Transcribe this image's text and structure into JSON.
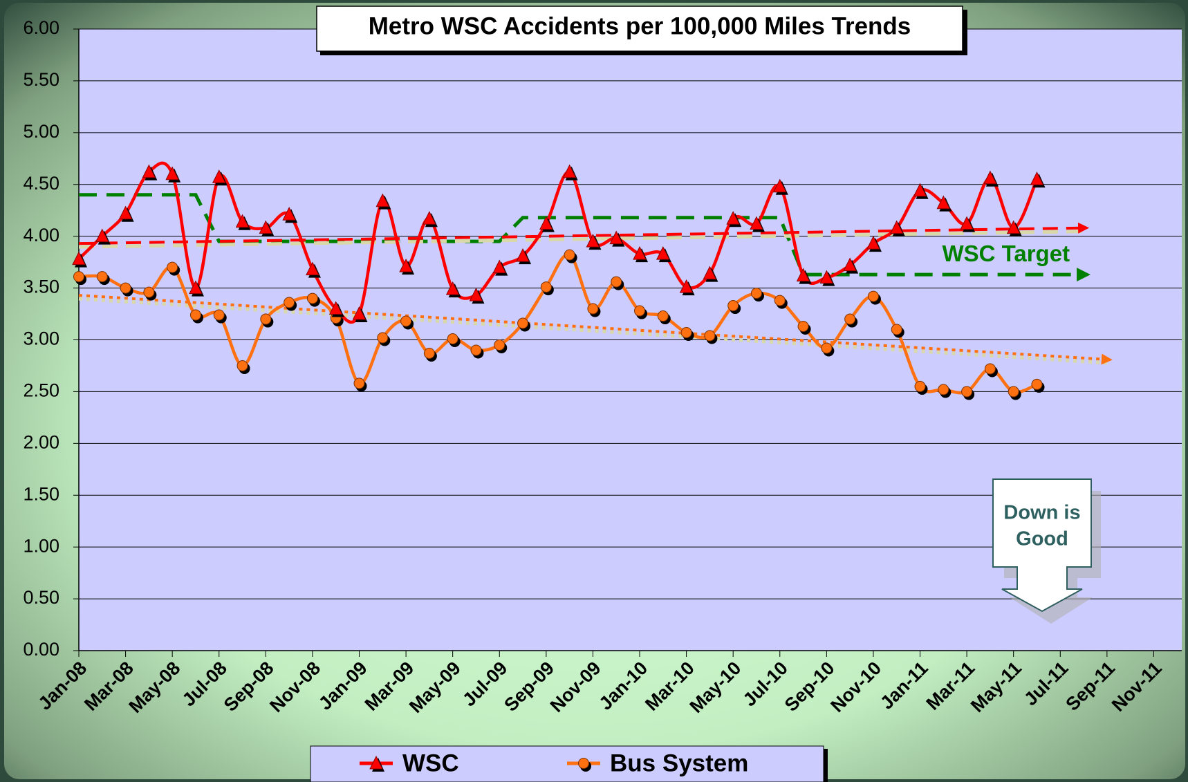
{
  "chart_data": {
    "type": "line",
    "title": "Metro WSC Accidents per 100,000 Miles Trends",
    "categories": [
      "Jan-08",
      null,
      "Mar-08",
      null,
      "May-08",
      null,
      "Jul-08",
      null,
      "Sep-08",
      null,
      "Nov-08",
      null,
      "Jan-09",
      null,
      "Mar-09",
      null,
      "May-09",
      null,
      "Jul-09",
      null,
      "Sep-09",
      null,
      "Nov-09",
      null,
      "Jan-10",
      null,
      "Mar-10",
      null,
      "May-10",
      null,
      "Jul-10",
      null,
      "Sep-10",
      null,
      "Nov-10",
      null,
      "Jan-11",
      null,
      "Mar-11",
      null,
      "May-11",
      null,
      "Jul-11",
      null,
      "Sep-11",
      null,
      "Nov-11",
      null
    ],
    "series": [
      {
        "name": "WSC",
        "color": "#ff0000",
        "marker": "triangle",
        "values": [
          3.78,
          4.0,
          4.22,
          4.62,
          4.6,
          3.5,
          4.57,
          4.14,
          4.08,
          4.21,
          3.68,
          3.3,
          3.25,
          4.34,
          3.71,
          4.17,
          3.49,
          3.43,
          3.7,
          3.81,
          4.12,
          4.62,
          3.95,
          3.98,
          3.83,
          3.83,
          3.51,
          3.64,
          4.17,
          4.12,
          4.48,
          3.62,
          3.6,
          3.72,
          3.93,
          4.08,
          4.44,
          4.32,
          4.12,
          4.56,
          4.08,
          4.55,
          null,
          null,
          null,
          null,
          null,
          null
        ]
      },
      {
        "name": "Bus System",
        "color": "#ff7010",
        "marker": "circle",
        "values": [
          3.61,
          3.61,
          3.5,
          3.46,
          3.7,
          3.24,
          3.24,
          2.75,
          3.2,
          3.36,
          3.4,
          3.21,
          2.58,
          3.02,
          3.18,
          2.87,
          3.01,
          2.9,
          2.95,
          3.16,
          3.51,
          3.82,
          3.3,
          3.56,
          3.28,
          3.23,
          3.07,
          3.04,
          3.33,
          3.45,
          3.38,
          3.13,
          2.92,
          3.2,
          3.42,
          3.1,
          2.55,
          2.52,
          2.5,
          2.72,
          2.5,
          2.57,
          null,
          null,
          null,
          null,
          null,
          null
        ]
      }
    ],
    "target": {
      "color": "#008000",
      "values": [
        4.4,
        4.4,
        4.4,
        4.4,
        4.4,
        4.4,
        3.95,
        3.95,
        3.95,
        3.95,
        3.95,
        3.95,
        3.95,
        3.95,
        3.95,
        3.95,
        3.95,
        3.95,
        3.95,
        4.18,
        4.18,
        4.18,
        4.18,
        4.18,
        4.18,
        4.18,
        4.18,
        4.18,
        4.18,
        4.18,
        4.18,
        3.63,
        3.63,
        3.63,
        3.63,
        3.63,
        3.63,
        3.63,
        3.63,
        3.63,
        3.63,
        3.63,
        3.63,
        3.63,
        null,
        null,
        null,
        null
      ]
    },
    "trend_lines": [
      {
        "color": "#ff0000",
        "style": "dashed",
        "start": 0,
        "end": 43,
        "values": [
          3.93,
          4.08
        ]
      },
      {
        "color": "#ff7010",
        "style": "dotted",
        "start": 0,
        "end": 44,
        "values": [
          3.43,
          2.81
        ]
      }
    ],
    "annotations": {
      "target_label": "WSC Target",
      "note": [
        "Down is",
        "Good"
      ]
    },
    "ylim": [
      0,
      6
    ],
    "yticks": [
      {
        "value": 0,
        "label": "0.00"
      },
      {
        "value": 0.5,
        "label": "0.50"
      },
      {
        "value": 1,
        "label": "1.00"
      },
      {
        "value": 1.5,
        "label": "1.50"
      },
      {
        "value": 2,
        "label": "2.00"
      },
      {
        "value": 2.5,
        "label": "2.50"
      },
      {
        "value": 3,
        "label": "3.00"
      },
      {
        "value": 3.5,
        "label": "3.50"
      },
      {
        "value": 4,
        "label": "4.00"
      },
      {
        "value": 4.5,
        "label": "4.50"
      },
      {
        "value": 5,
        "label": "5.00"
      },
      {
        "value": 5.5,
        "label": "5.50"
      },
      {
        "value": 6,
        "label": "6.00"
      }
    ],
    "grid": true,
    "plot_background": "#ccccff"
  }
}
